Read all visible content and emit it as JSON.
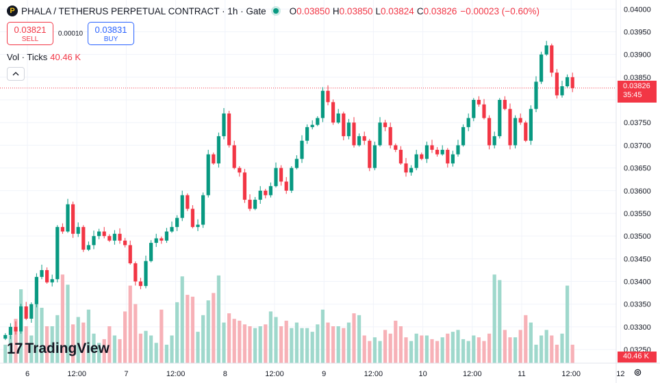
{
  "legend": {
    "logo_letter": "P",
    "symbol": "PHALA / TETHERUS PERPETUAL CONTRACT · 1h · Gate",
    "o_key": "O",
    "o_val": "0.03850",
    "h_key": "H",
    "h_val": "0.03850",
    "l_key": "L",
    "l_val": "0.03824",
    "c_key": "C",
    "c_val": "0.03826",
    "change": "−0.00023 (−0.60%)"
  },
  "trade": {
    "sell_price": "0.03821",
    "sell_label": "SELL",
    "spread": "0.00010",
    "buy_price": "0.03831",
    "buy_label": "BUY"
  },
  "volume": {
    "label": "Vol · Ticks",
    "value": "40.46 K"
  },
  "collapse_icon": "chevron-up-icon",
  "brand": {
    "name": "TradingView",
    "mark": "17"
  },
  "price_tag": {
    "price": "0.03826",
    "countdown": "35:45"
  },
  "vol_tag": "40.46 K",
  "colors": {
    "up": "#089981",
    "down": "#f23645",
    "up_vol": "#9fd8cc",
    "down_vol": "#f7b1b7"
  },
  "chart_data": {
    "type": "candlestick",
    "y_ticks": [
      "0.04000",
      "0.03950",
      "0.03900",
      "0.03850",
      "0.03800",
      "0.03750",
      "0.03700",
      "0.03650",
      "0.03600",
      "0.03550",
      "0.03500",
      "0.03450",
      "0.03400",
      "0.03350",
      "0.03300",
      "0.03250"
    ],
    "ylim": [
      0.0322,
      0.0402
    ],
    "x_ticks": [
      "6",
      "12:00",
      "7",
      "12:00",
      "8",
      "12:00",
      "9",
      "12:00",
      "10",
      "12:00",
      "11",
      "12:00",
      "12"
    ],
    "last_price": 0.03826,
    "closes": [
      0.03282,
      0.033,
      0.0329,
      0.03345,
      0.03318,
      0.0335,
      0.0341,
      0.03425,
      0.03398,
      0.03405,
      0.0352,
      0.0351,
      0.0357,
      0.03505,
      0.0352,
      0.0347,
      0.0348,
      0.035,
      0.0351,
      0.035,
      0.0349,
      0.03505,
      0.0349,
      0.0348,
      0.0344,
      0.034,
      0.0339,
      0.03445,
      0.03485,
      0.03495,
      0.0349,
      0.0351,
      0.0352,
      0.0354,
      0.0359,
      0.0356,
      0.0352,
      0.03525,
      0.0359,
      0.0368,
      0.0366,
      0.0372,
      0.0377,
      0.037,
      0.0365,
      0.0364,
      0.0358,
      0.0356,
      0.0358,
      0.036,
      0.0359,
      0.0361,
      0.0365,
      0.0362,
      0.036,
      0.0365,
      0.0367,
      0.0371,
      0.0374,
      0.03745,
      0.0376,
      0.0382,
      0.03795,
      0.0375,
      0.0377,
      0.0372,
      0.0375,
      0.037,
      0.0372,
      0.0371,
      0.0365,
      0.037,
      0.0375,
      0.0374,
      0.037,
      0.0369,
      0.0366,
      0.0364,
      0.0365,
      0.0368,
      0.0367,
      0.037,
      0.0369,
      0.0368,
      0.0369,
      0.0366,
      0.0368,
      0.037,
      0.0374,
      0.0376,
      0.038,
      0.0379,
      0.0376,
      0.037,
      0.0372,
      0.038,
      0.0378,
      0.037,
      0.0376,
      0.0375,
      0.0371,
      0.0378,
      0.0384,
      0.039,
      0.0392,
      0.0386,
      0.0381,
      0.0383,
      0.0385,
      0.03826
    ],
    "volumes": [
      20,
      30,
      48,
      80,
      40,
      30,
      70,
      60,
      40,
      40,
      52,
      96,
      85,
      42,
      50,
      44,
      58,
      32,
      22,
      26,
      40,
      30,
      26,
      56,
      84,
      64,
      32,
      35,
      30,
      22,
      58,
      20,
      30,
      66,
      94,
      74,
      72,
      34,
      52,
      68,
      76,
      95,
      44,
      54,
      48,
      46,
      42,
      40,
      38,
      40,
      42,
      56,
      50,
      40,
      46,
      38,
      44,
      38,
      38,
      34,
      42,
      58,
      44,
      40,
      40,
      38,
      44,
      54,
      52,
      30,
      24,
      28,
      24,
      36,
      32,
      46,
      40,
      28,
      24,
      32,
      30,
      30,
      26,
      24,
      28,
      32,
      34,
      36,
      26,
      24,
      30,
      28,
      24,
      32,
      96,
      90,
      36,
      28,
      28,
      36,
      52,
      44,
      20,
      30,
      36,
      30,
      20,
      32,
      84,
      20
    ]
  }
}
